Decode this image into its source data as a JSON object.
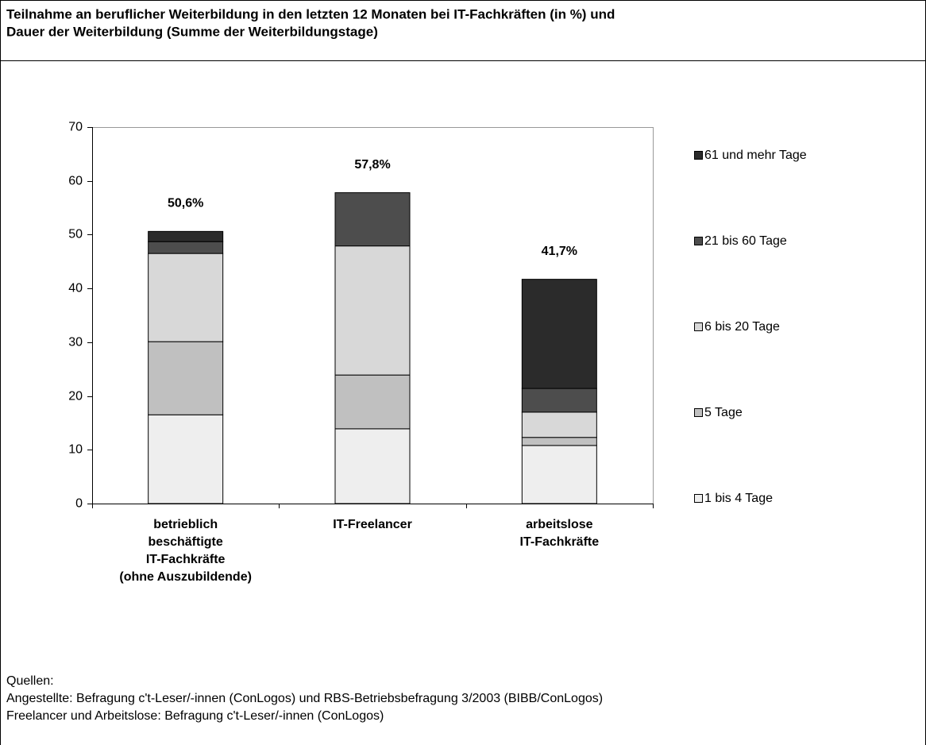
{
  "title": [
    "Teilnahme an beruflicher Weiterbildung in den letzten 12 Monaten bei IT-Fachkräften (in %) und",
    "Dauer der Weiterbildung (Summe der Weiterbildungstage)"
  ],
  "chart_data": {
    "type": "stacked_bar",
    "categories": [
      [
        "betrieblich",
        "beschäftigte",
        "IT-Fachkräfte",
        "(ohne Auszubildende)"
      ],
      [
        "IT-Freelancer"
      ],
      [
        "arbeitslose",
        "IT-Fachkräfte"
      ]
    ],
    "series": [
      {
        "name": "1 bis 4 Tage",
        "color": "#eeeeee",
        "values": [
          16.5,
          13.9,
          10.8
        ]
      },
      {
        "name": "5 Tage",
        "color": "#c0c0c0",
        "values": [
          13.6,
          10.0,
          1.5
        ]
      },
      {
        "name": "6 bis 20 Tage",
        "color": "#d8d8d8",
        "values": [
          16.4,
          24.0,
          4.7
        ]
      },
      {
        "name": "21 bis 60 Tage",
        "color": "#4d4d4d",
        "values": [
          2.2,
          9.9,
          4.4
        ]
      },
      {
        "name": "61 und mehr Tage",
        "color": "#2b2b2b",
        "values": [
          1.9,
          0,
          20.3
        ]
      }
    ],
    "totals": [
      50.6,
      57.8,
      41.7
    ],
    "total_labels": [
      "50,6%",
      "57,8%",
      "41,7%"
    ],
    "ylim": [
      0,
      70
    ],
    "yticks": [
      0,
      10,
      20,
      30,
      40,
      50,
      60,
      70
    ],
    "grid": false,
    "legend": "right"
  },
  "sources": [
    "Quellen:",
    "Angestellte: Befragung c't-Leser/-innen (ConLogos) und RBS-Betriebsbefragung 3/2003 (BIBB/ConLogos)",
    "Freelancer und Arbeitslose: Befragung c't-Leser/-innen (ConLogos)"
  ]
}
